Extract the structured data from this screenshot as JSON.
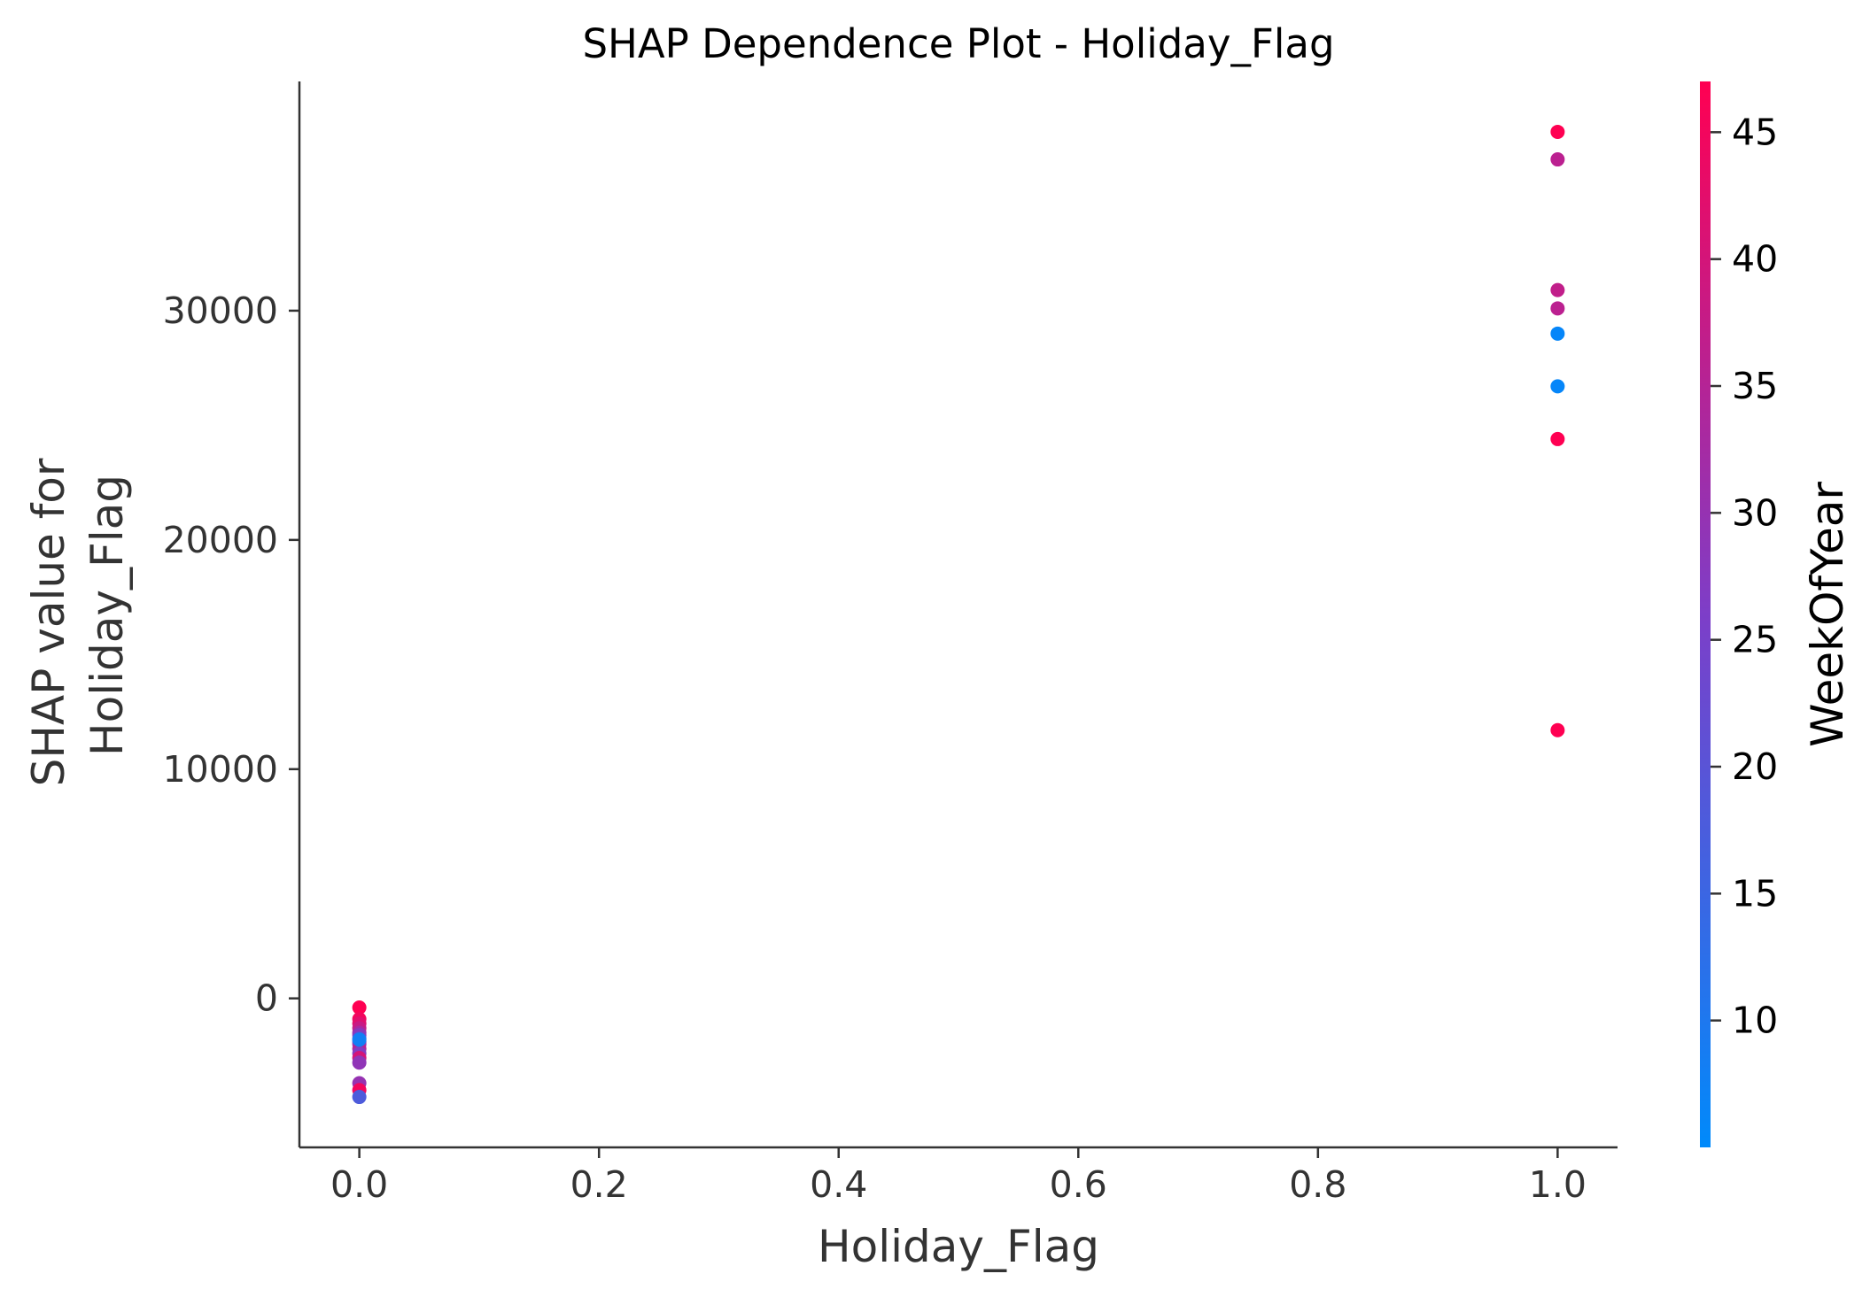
{
  "chart_data": {
    "type": "scatter",
    "title": "SHAP Dependence Plot - Holiday_Flag",
    "xlabel": "Holiday_Flag",
    "ylabel_lines": [
      "SHAP value for",
      "Holiday_Flag"
    ],
    "xlim": [
      -0.05,
      1.05
    ],
    "ylim": [
      -6500,
      40000
    ],
    "x_ticks": [
      0.0,
      0.2,
      0.4,
      0.6,
      0.8,
      1.0
    ],
    "x_tick_labels": [
      "0.0",
      "0.2",
      "0.4",
      "0.6",
      "0.8",
      "1.0"
    ],
    "y_ticks": [
      0,
      10000,
      20000,
      30000
    ],
    "y_tick_labels": [
      "0",
      "10000",
      "20000",
      "30000"
    ],
    "grid": false,
    "colorbar": {
      "label": "WeekOfYear",
      "range": [
        5,
        47
      ],
      "ticks": [
        10,
        15,
        20,
        25,
        30,
        35,
        40,
        45
      ],
      "tick_labels": [
        "10",
        "15",
        "20",
        "25",
        "30",
        "35",
        "40",
        "45"
      ],
      "color_low": "#008afb",
      "color_mid": "#7d3ec8",
      "color_high": "#ff0052"
    },
    "points": [
      {
        "x": 1.0,
        "y": 37800,
        "week": 47
      },
      {
        "x": 1.0,
        "y": 36600,
        "week": 36
      },
      {
        "x": 1.0,
        "y": 30900,
        "week": 37
      },
      {
        "x": 1.0,
        "y": 30100,
        "week": 36
      },
      {
        "x": 1.0,
        "y": 29000,
        "week": 6
      },
      {
        "x": 1.0,
        "y": 26700,
        "week": 6
      },
      {
        "x": 1.0,
        "y": 24400,
        "week": 47
      },
      {
        "x": 1.0,
        "y": 11700,
        "week": 47
      },
      {
        "x": 0.0,
        "y": -400,
        "week": 47
      },
      {
        "x": 0.0,
        "y": -900,
        "week": 45
      },
      {
        "x": 0.0,
        "y": -1100,
        "week": 42
      },
      {
        "x": 0.0,
        "y": -1300,
        "week": 38
      },
      {
        "x": 0.0,
        "y": -1500,
        "week": 33
      },
      {
        "x": 0.0,
        "y": -1600,
        "week": 28
      },
      {
        "x": 0.0,
        "y": -1750,
        "week": 22
      },
      {
        "x": 0.0,
        "y": -1900,
        "week": 26
      },
      {
        "x": 0.0,
        "y": -2000,
        "week": 30
      },
      {
        "x": 0.0,
        "y": -2200,
        "week": 35
      },
      {
        "x": 0.0,
        "y": -2400,
        "week": 27
      },
      {
        "x": 0.0,
        "y": -2600,
        "week": 40
      },
      {
        "x": 0.0,
        "y": -2800,
        "week": 29
      },
      {
        "x": 0.0,
        "y": -3700,
        "week": 30
      },
      {
        "x": 0.0,
        "y": -4000,
        "week": 45
      },
      {
        "x": 0.0,
        "y": -4300,
        "week": 18
      },
      {
        "x": 0.0,
        "y": -1800,
        "week": 8
      }
    ]
  }
}
